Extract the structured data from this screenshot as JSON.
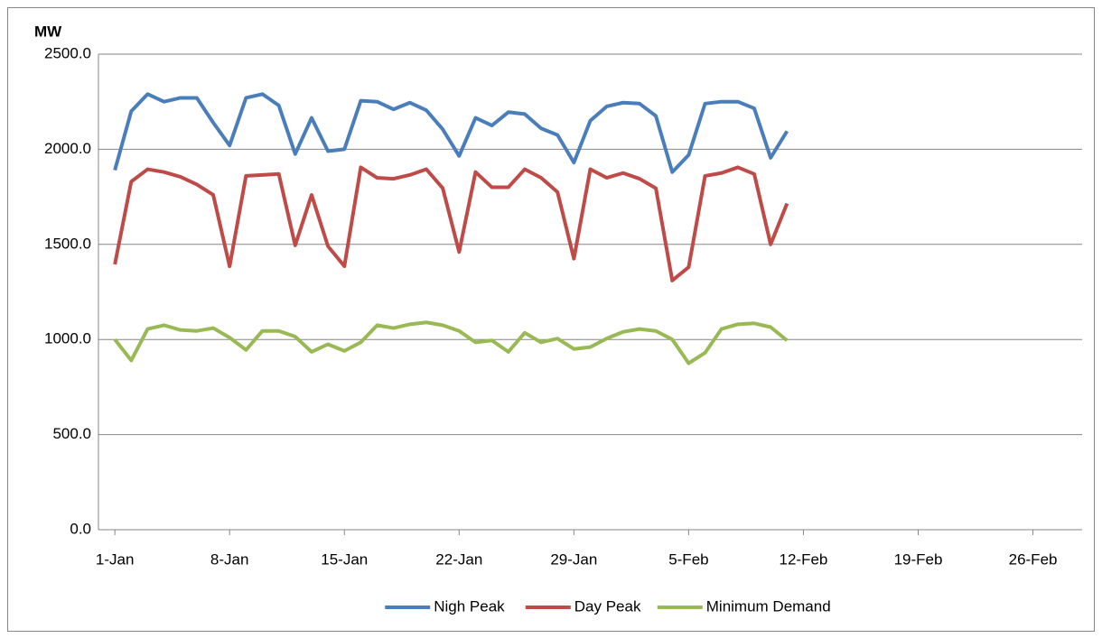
{
  "chart_data": {
    "type": "line",
    "y_label": "MW",
    "x": [
      1,
      2,
      3,
      4,
      5,
      6,
      7,
      8,
      9,
      10,
      11,
      12,
      13,
      14,
      15,
      16,
      17,
      18,
      19,
      20,
      21,
      22,
      23,
      24,
      25,
      26,
      27,
      28,
      29,
      30,
      31,
      32,
      33,
      34,
      35,
      36,
      37,
      38,
      39,
      40,
      41,
      42
    ],
    "xlim": [
      0,
      60
    ],
    "xticks": [
      {
        "value": 1,
        "label": "1-Jan"
      },
      {
        "value": 8,
        "label": "8-Jan"
      },
      {
        "value": 15,
        "label": "15-Jan"
      },
      {
        "value": 22,
        "label": "22-Jan"
      },
      {
        "value": 29,
        "label": "29-Jan"
      },
      {
        "value": 36,
        "label": "5-Feb"
      },
      {
        "value": 43,
        "label": "12-Feb"
      },
      {
        "value": 50,
        "label": "19-Feb"
      },
      {
        "value": 57,
        "label": "26-Feb"
      }
    ],
    "ylim": [
      0,
      2500
    ],
    "yticks": [
      {
        "value": 0,
        "label": "0.0"
      },
      {
        "value": 500,
        "label": "500.0"
      },
      {
        "value": 1000,
        "label": "1000.0"
      },
      {
        "value": 1500,
        "label": "1500.0"
      },
      {
        "value": 2000,
        "label": "2000.0"
      },
      {
        "value": 2500,
        "label": "2500.0"
      }
    ],
    "grid": true,
    "legend": "bottom",
    "series": [
      {
        "name": "Nigh Peak",
        "color": "#4a7ebb",
        "values": [
          1890,
          2200,
          2290,
          2250,
          2270,
          2270,
          2140,
          2020,
          2270,
          2290,
          2230,
          1975,
          2165,
          1990,
          2000,
          2255,
          2250,
          2210,
          2245,
          2205,
          2105,
          1965,
          2165,
          2125,
          2195,
          2185,
          2110,
          2075,
          1930,
          2150,
          2225,
          2245,
          2240,
          2175,
          1880,
          1970,
          2240,
          2250,
          2250,
          2215,
          1955,
          2095
        ]
      },
      {
        "name": "Day Peak",
        "color": "#be4b48",
        "values": [
          1395,
          1830,
          1895,
          1880,
          1855,
          1815,
          1760,
          1385,
          1860,
          1865,
          1870,
          1495,
          1760,
          1490,
          1385,
          1905,
          1850,
          1845,
          1865,
          1895,
          1795,
          1460,
          1880,
          1800,
          1800,
          1895,
          1850,
          1775,
          1425,
          1895,
          1850,
          1875,
          1845,
          1795,
          1310,
          1380,
          1860,
          1875,
          1905,
          1870,
          1500,
          1715
        ]
      },
      {
        "name": "Minimum Demand",
        "color": "#98b954",
        "values": [
          1000,
          890,
          1055,
          1075,
          1050,
          1045,
          1060,
          1010,
          945,
          1045,
          1045,
          1015,
          935,
          975,
          940,
          985,
          1075,
          1060,
          1080,
          1090,
          1075,
          1045,
          985,
          995,
          935,
          1035,
          985,
          1005,
          950,
          960,
          1005,
          1040,
          1055,
          1045,
          1000,
          875,
          930,
          1055,
          1080,
          1085,
          1065,
          995
        ]
      }
    ]
  }
}
